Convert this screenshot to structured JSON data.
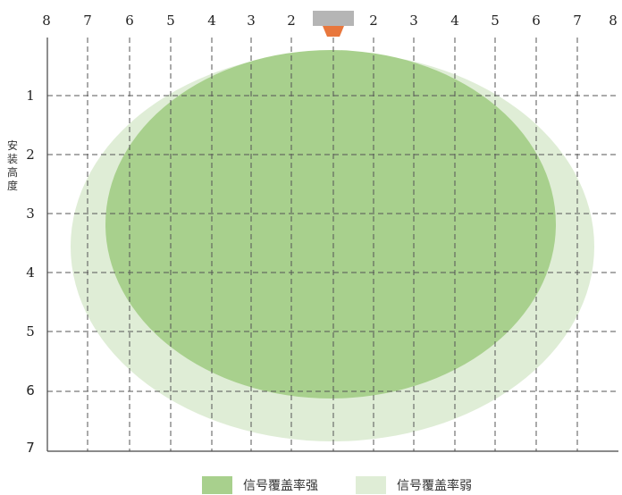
{
  "top_axis": {
    "left_labels": [
      "8",
      "7",
      "6",
      "5",
      "4",
      "3",
      "2"
    ],
    "right_labels": [
      "2",
      "3",
      "4",
      "5",
      "6",
      "7",
      "8"
    ]
  },
  "left_axis": {
    "labels": [
      "1",
      "2",
      "3",
      "4",
      "5",
      "6",
      "7"
    ],
    "title_chars": [
      "安",
      "装",
      "高",
      "度"
    ]
  },
  "legend": {
    "strong_label": "信号覆盖率强",
    "weak_label": "信号覆盖率弱"
  },
  "colors": {
    "strong": "#a8d08d",
    "weak": "#dfedd6",
    "sensor_body": "#b5b5b5",
    "sensor_head": "#e8773d",
    "grid": "#555555"
  }
}
